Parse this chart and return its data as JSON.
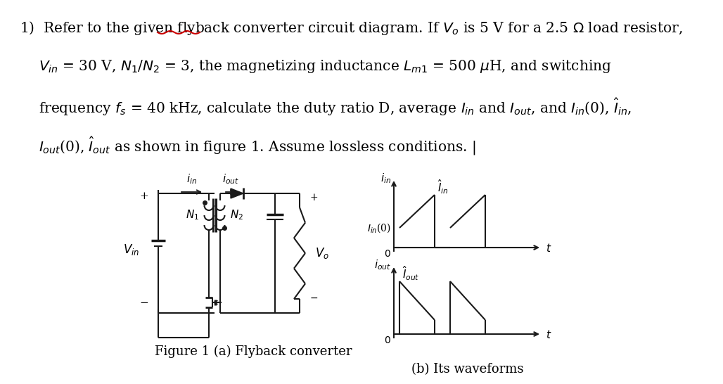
{
  "bg_color": "#ffffff",
  "line_color": "#1a1a1a",
  "red_color": "#cc0000",
  "fig1_caption": "Figure 1 (a) Flyback converter",
  "fig2_caption": "(b) Its waveforms",
  "font_size_text": 14.5,
  "font_size_small": 11,
  "font_size_caption": 13
}
